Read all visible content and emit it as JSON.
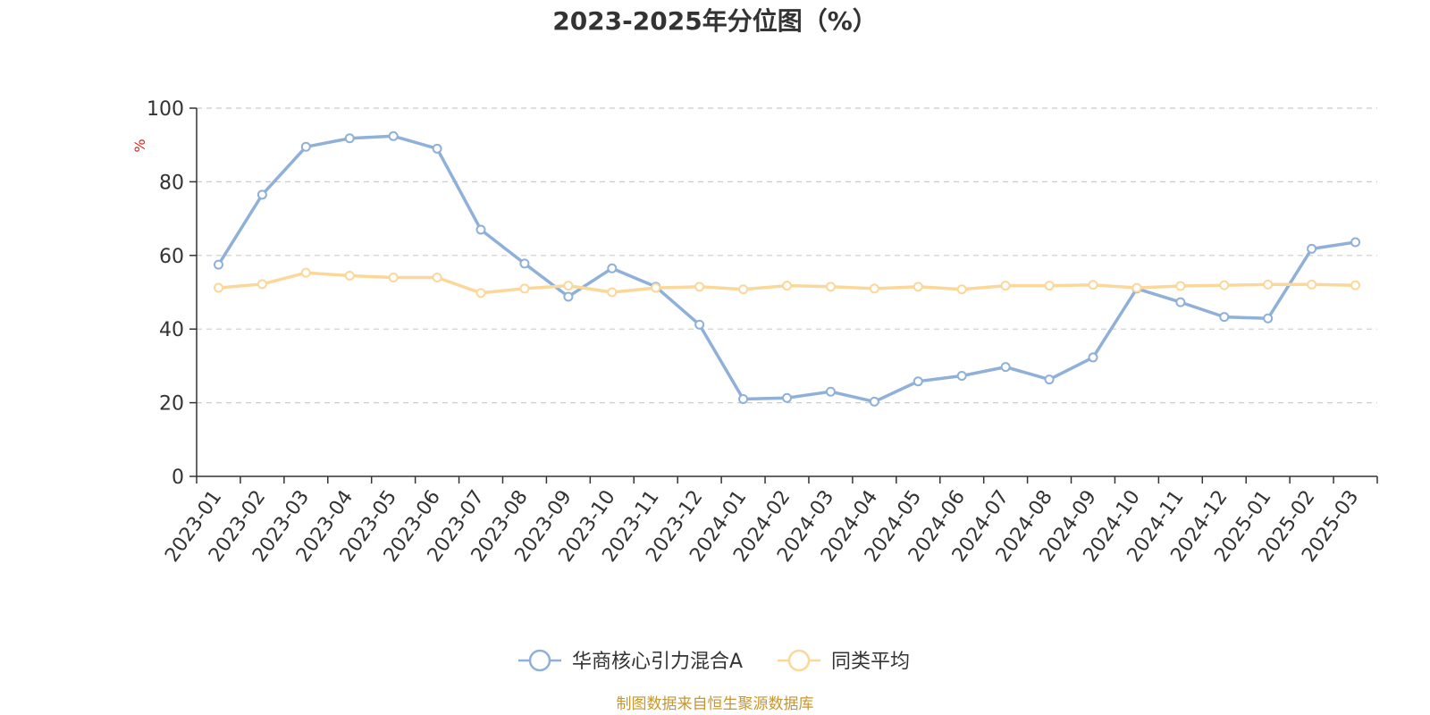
{
  "chart_data": {
    "type": "line",
    "title": "2023-2025年分位图（%）",
    "ylabel": "%",
    "ylim": [
      0,
      100
    ],
    "yticks": [
      0,
      20,
      40,
      60,
      80,
      100
    ],
    "grid": "horizontal-dashed",
    "legend_position": "bottom-center",
    "categories": [
      "2023-01",
      "2023-02",
      "2023-03",
      "2023-04",
      "2023-05",
      "2023-06",
      "2023-07",
      "2023-08",
      "2023-09",
      "2023-10",
      "2023-11",
      "2023-12",
      "2024-01",
      "2024-02",
      "2024-03",
      "2024-04",
      "2024-05",
      "2024-06",
      "2024-07",
      "2024-08",
      "2024-09",
      "2024-10",
      "2024-11",
      "2024-12",
      "2025-01",
      "2025-02",
      "2025-03"
    ],
    "series": [
      {
        "name": "华商核心引力混合A",
        "color": "#8eb0d9",
        "values": [
          57.5,
          76.5,
          89.5,
          91.8,
          92.4,
          89.0,
          67.0,
          57.8,
          48.8,
          56.5,
          51.5,
          41.2,
          21.0,
          21.3,
          23.0,
          20.3,
          25.8,
          27.3,
          29.7,
          26.3,
          32.3,
          51.0,
          47.3,
          43.3,
          42.9,
          61.8,
          63.6
        ]
      },
      {
        "name": "同类平均",
        "color": "#fbd89a",
        "values": [
          51.2,
          52.2,
          55.3,
          54.5,
          54.0,
          54.0,
          49.8,
          51.0,
          51.8,
          50.0,
          51.2,
          51.5,
          50.8,
          51.8,
          51.5,
          51.0,
          51.5,
          50.8,
          51.8,
          51.8,
          52.0,
          51.2,
          51.7,
          51.9,
          52.1,
          52.1,
          51.9
        ]
      }
    ]
  },
  "source_text": "制图数据来自恒生聚源数据库",
  "colors": {
    "source": "#c8962e",
    "ylabel": "#e02020",
    "axis": "#333333",
    "grid": "#cccccc"
  }
}
